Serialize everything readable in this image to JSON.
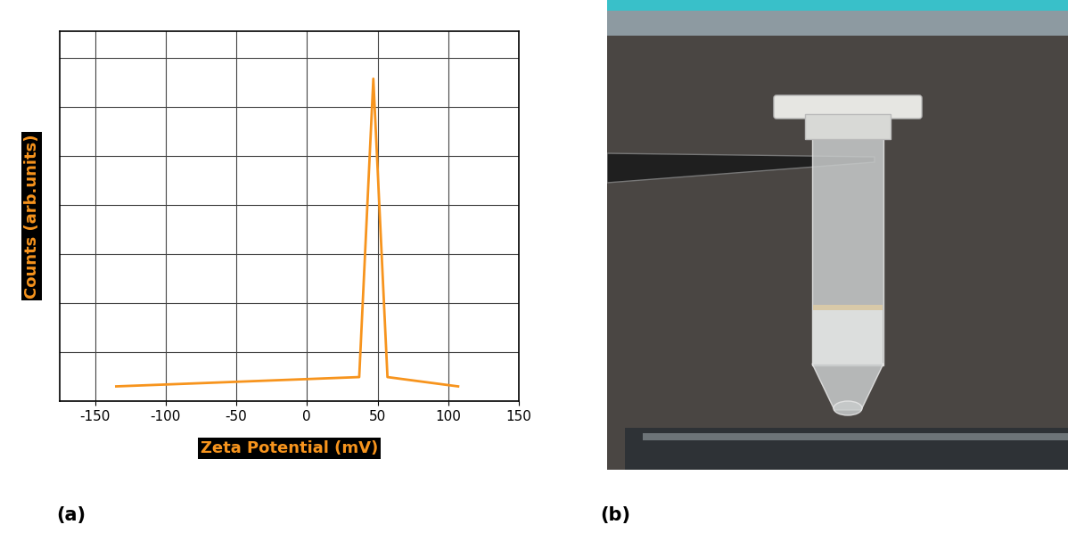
{
  "chart_data": {
    "type": "line",
    "x": [
      -135,
      37,
      47,
      57,
      107
    ],
    "values": [
      0.3,
      0.49,
      6.58,
      0.49,
      0.3
    ],
    "color": "#f7941d",
    "xlabel": "Zeta Potential (mV)",
    "ylabel": "Counts (arb.units)",
    "xlim": [
      -175,
      150
    ],
    "xticks": [
      -150,
      -100,
      -50,
      0,
      50,
      100,
      150
    ],
    "ylim": [
      0,
      7.55
    ],
    "yticks": [
      0,
      1,
      2,
      3,
      4,
      5,
      6,
      7
    ],
    "grid": true,
    "tick_labels": "x"
  },
  "panel_labels": [
    "(a)",
    "(b)"
  ]
}
